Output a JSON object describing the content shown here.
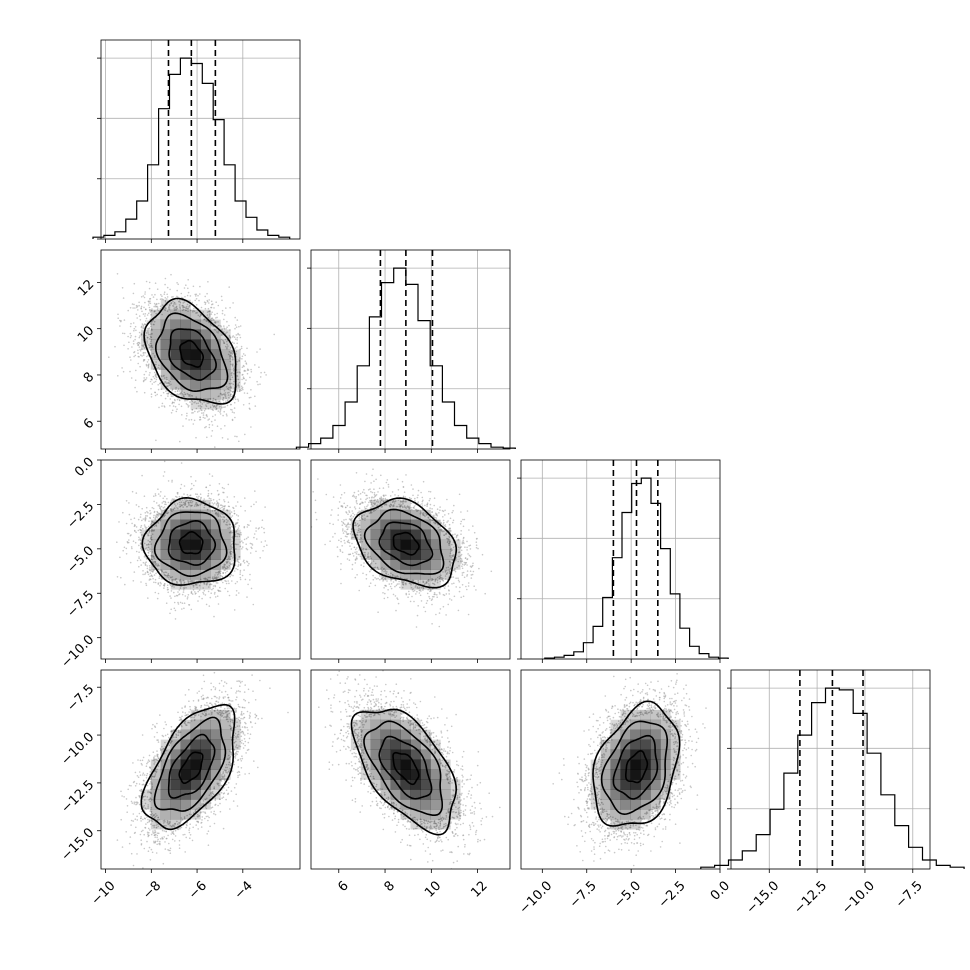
{
  "figure": {
    "type": "corner_plot"
  },
  "chart_data": {
    "type": "corner",
    "params": [
      {
        "range": [
          -10.2,
          -1.5
        ],
        "ticks": [
          -10,
          -8,
          -6,
          -4
        ],
        "tick_labels": [
          "−10",
          "−8",
          "−6",
          "−4"
        ],
        "quantiles": [
          -7.25,
          -6.25,
          -5.2
        ],
        "mean": -6.25,
        "sd": 1.0,
        "hist": [
          0.01,
          0.02,
          0.04,
          0.11,
          0.21,
          0.41,
          0.72,
          0.91,
          1.0,
          0.97,
          0.86,
          0.66,
          0.41,
          0.21,
          0.12,
          0.05,
          0.02,
          0.01
        ]
      },
      {
        "range": [
          4.8,
          13.4
        ],
        "ticks": [
          6,
          8,
          10,
          12
        ],
        "tick_labels": [
          "6",
          "8",
          "10",
          "12"
        ],
        "quantiles": [
          7.8,
          8.9,
          10.05
        ],
        "mean": 8.9,
        "sd": 1.1,
        "hist": [
          0.01,
          0.03,
          0.06,
          0.13,
          0.26,
          0.46,
          0.73,
          0.92,
          1.0,
          0.91,
          0.71,
          0.46,
          0.26,
          0.13,
          0.06,
          0.03,
          0.01,
          0.005
        ]
      },
      {
        "range": [
          -11.2,
          0.0
        ],
        "ticks": [
          -10.0,
          -7.5,
          -5.0,
          -2.5,
          0.0
        ],
        "tick_labels": [
          "−10.0",
          "−7.5",
          "−5.0",
          "−2.5",
          "0.0"
        ],
        "quantiles": [
          -6.0,
          -4.7,
          -3.5
        ],
        "mean": -4.7,
        "sd": 1.2,
        "hist": [
          0.005,
          0.01,
          0.02,
          0.04,
          0.09,
          0.18,
          0.34,
          0.56,
          0.81,
          0.97,
          1.0,
          0.86,
          0.61,
          0.36,
          0.17,
          0.07,
          0.03,
          0.01,
          0.005
        ]
      },
      {
        "range": [
          -17.0,
          -6.6
        ],
        "ticks": [
          -15.0,
          -12.5,
          -10.0,
          -7.5
        ],
        "tick_labels": [
          "−15.0",
          "−12.5",
          "−10.0",
          "−7.5"
        ],
        "quantiles": [
          -13.4,
          -11.7,
          -10.1
        ],
        "mean": -11.7,
        "sd": 1.6,
        "hist": [
          0.01,
          0.02,
          0.05,
          0.1,
          0.19,
          0.33,
          0.53,
          0.74,
          0.92,
          1.0,
          0.99,
          0.86,
          0.64,
          0.41,
          0.24,
          0.12,
          0.05,
          0.02,
          0.01
        ]
      }
    ],
    "correlations": {
      "1-0": -0.35,
      "2-0": 0.0,
      "2-1": -0.3,
      "3-0": 0.55,
      "3-1": -0.55,
      "3-2": 0.3
    },
    "hist_y_max": 1.1,
    "hist_gridlines": [
      0.0,
      0.333,
      0.667,
      1.0
    ],
    "contour_levels_sigma": [
      0.5,
      1.0,
      1.5,
      2.0
    ],
    "labelled_x_axes": [
      0,
      1,
      2,
      3
    ],
    "labelled_y_axes": [
      1,
      2,
      3
    ],
    "grid": true,
    "colors": {
      "hist": "#000000",
      "contours": "#000000",
      "density": "#000000",
      "points": "#9a9a9a"
    }
  }
}
